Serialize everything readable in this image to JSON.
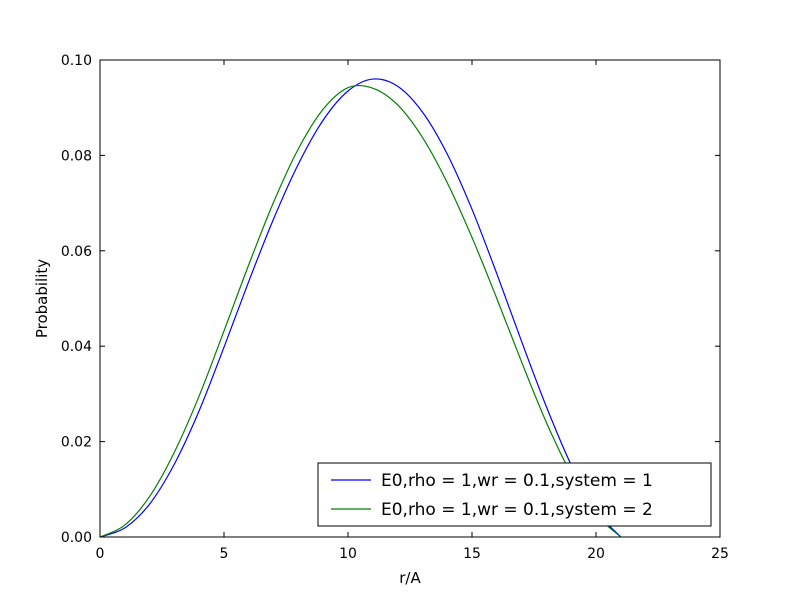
{
  "chart_data": {
    "type": "line",
    "title": "",
    "xlabel": "r/A",
    "ylabel": "Probability",
    "xlim": [
      0,
      25
    ],
    "ylim": [
      0,
      0.1
    ],
    "x_ticks": [
      "0",
      "5",
      "10",
      "15",
      "20",
      "25"
    ],
    "y_ticks": [
      "0.00",
      "0.02",
      "0.04",
      "0.06",
      "0.08",
      "0.10"
    ],
    "grid": false,
    "legend_position": "lower-right",
    "series": [
      {
        "name": "E0,rho = 1,wr = 0.1,system = 1",
        "color": "#0000ff",
        "x": [
          0,
          1,
          2,
          3,
          4,
          5,
          6,
          7,
          8,
          9,
          10,
          11,
          12,
          13,
          14,
          15,
          16,
          17,
          18,
          19,
          20,
          21
        ],
        "y": [
          0.0,
          0.0019,
          0.0069,
          0.0153,
          0.0265,
          0.0398,
          0.0536,
          0.0667,
          0.0782,
          0.0874,
          0.0935,
          0.096,
          0.0945,
          0.0891,
          0.0803,
          0.0687,
          0.0552,
          0.041,
          0.0273,
          0.0151,
          0.0056,
          0.0
        ]
      },
      {
        "name": "E0,rho = 1,wr = 0.1,system = 2",
        "color": "#008000",
        "x": [
          0,
          1,
          2,
          3,
          4,
          5,
          6,
          7,
          8,
          9,
          10,
          11,
          12,
          13,
          14,
          15,
          16,
          17,
          18,
          19,
          20,
          21
        ],
        "y": [
          0.0,
          0.0025,
          0.0085,
          0.0178,
          0.0296,
          0.0432,
          0.0571,
          0.0702,
          0.0814,
          0.0897,
          0.0942,
          0.0941,
          0.0906,
          0.0838,
          0.0743,
          0.0628,
          0.05,
          0.0367,
          0.024,
          0.0132,
          0.0048,
          0.0
        ]
      }
    ]
  }
}
